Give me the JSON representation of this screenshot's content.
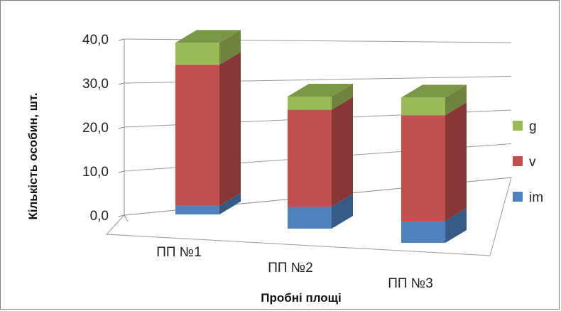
{
  "chart_data": {
    "type": "bar",
    "stacked": true,
    "style": "3d-column",
    "categories": [
      "ПП №1",
      "ПП №2",
      "ПП №3"
    ],
    "series": [
      {
        "name": "im",
        "values": [
          2.0,
          5.0,
          5.0
        ],
        "color": "#4F81BD"
      },
      {
        "name": "v",
        "values": [
          32.0,
          22.0,
          24.0
        ],
        "color": "#C0504D"
      },
      {
        "name": "g",
        "values": [
          5.0,
          3.0,
          4.0
        ],
        "color": "#9BBB59"
      }
    ],
    "legend_order": [
      "g",
      "v",
      "im"
    ],
    "legend_position": "right",
    "ylim": [
      0,
      40
    ],
    "yticks": [
      "0,0",
      "10,0",
      "20,0",
      "30,0",
      "40,0"
    ],
    "ylabel": "Кількість особин, шт.",
    "xlabel": "Пробні площі",
    "title": "",
    "grid": true
  }
}
